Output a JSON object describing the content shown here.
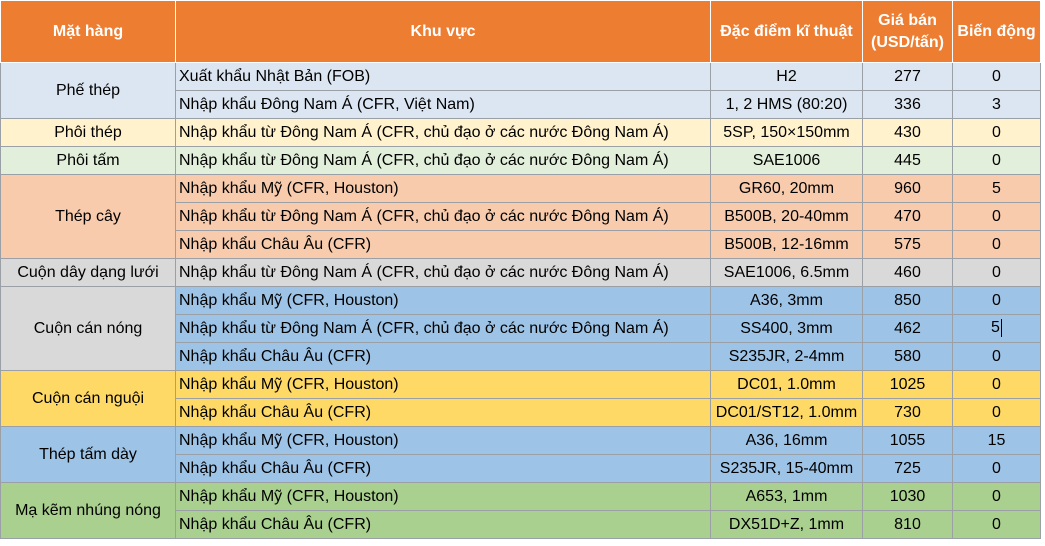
{
  "headers": {
    "product": "Mặt hàng",
    "region": "Khu vực",
    "spec": "Đặc điểm kĩ thuật",
    "price_line1": "Giá bán",
    "price_line2": "(USD/tấn)",
    "change": "Biến động"
  },
  "groups": [
    {
      "name": "Phế thép",
      "rows": [
        {
          "region": "Xuất khẩu Nhật Bản (FOB)",
          "spec": "H2",
          "price": "277",
          "change": "0"
        },
        {
          "region": "Nhập khẩu Đông Nam Á (CFR, Việt Nam)",
          "spec": "1, 2 HMS (80:20)",
          "price": "336",
          "change": "3"
        }
      ]
    },
    {
      "name": "Phôi thép",
      "rows": [
        {
          "region": "Nhập khẩu từ Đông Nam Á (CFR, chủ đạo ở các nước Đông Nam Á)",
          "spec": "5SP, 150×150mm",
          "price": "430",
          "change": "0"
        }
      ]
    },
    {
      "name": "Phôi tấm",
      "rows": [
        {
          "region": "Nhập khẩu từ Đông Nam Á (CFR, chủ đạo ở các nước Đông Nam Á)",
          "spec": "SAE1006",
          "price": "445",
          "change": "0"
        }
      ]
    },
    {
      "name": "Thép cây",
      "rows": [
        {
          "region": "Nhập khẩu Mỹ (CFR, Houston)",
          "spec": "GR60, 20mm",
          "price": "960",
          "change": "5"
        },
        {
          "region": "Nhập khẩu từ Đông Nam Á (CFR, chủ đạo ở các nước Đông Nam Á)",
          "spec": "B500B, 20-40mm",
          "price": "470",
          "change": "0"
        },
        {
          "region": "Nhập khẩu Châu Âu (CFR)",
          "spec": "B500B, 12-16mm",
          "price": "575",
          "change": "0"
        }
      ]
    },
    {
      "name": "Cuộn dây dạng lưới",
      "rows": [
        {
          "region": "Nhập khẩu từ Đông Nam Á (CFR, chủ đạo ở các nước Đông Nam Á)",
          "spec": "SAE1006, 6.5mm",
          "price": "460",
          "change": "0"
        }
      ]
    },
    {
      "name": "Cuộn cán nóng",
      "rows": [
        {
          "region": "Nhập khẩu Mỹ (CFR, Houston)",
          "spec": "A36, 3mm",
          "price": "850",
          "change": "0"
        },
        {
          "region": "Nhập khẩu từ Đông Nam Á (CFR, chủ đạo ở các nước Đông Nam Á)",
          "spec": "SS400, 3mm",
          "price": "462",
          "change": "5"
        },
        {
          "region": "Nhập khẩu Châu Âu (CFR)",
          "spec": "S235JR, 2-4mm",
          "price": "580",
          "change": "0"
        }
      ]
    },
    {
      "name": "Cuộn cán nguội",
      "rows": [
        {
          "region": "Nhập khẩu Mỹ (CFR, Houston)",
          "spec": "DC01, 1.0mm",
          "price": "1025",
          "change": "0"
        },
        {
          "region": "Nhập khẩu Châu Âu (CFR)",
          "spec": "DC01/ST12, 1.0mm",
          "price": "730",
          "change": "0"
        }
      ]
    },
    {
      "name": "Thép tấm dày",
      "rows": [
        {
          "region": "Nhập khẩu Mỹ (CFR, Houston)",
          "spec": "A36, 16mm",
          "price": "1055",
          "change": "15"
        },
        {
          "region": "Nhập khẩu Châu Âu (CFR)",
          "spec": "S235JR, 15-40mm",
          "price": "725",
          "change": "0"
        }
      ]
    },
    {
      "name": "Mạ kẽm nhúng nóng",
      "rows": [
        {
          "region": "Nhập khẩu Mỹ (CFR, Houston)",
          "spec": "A653, 1mm",
          "price": "1030",
          "change": "0"
        },
        {
          "region": "Nhập khẩu Châu Âu (CFR)",
          "spec": "DX51D+Z, 1mm",
          "price": "810",
          "change": "0"
        }
      ]
    }
  ]
}
